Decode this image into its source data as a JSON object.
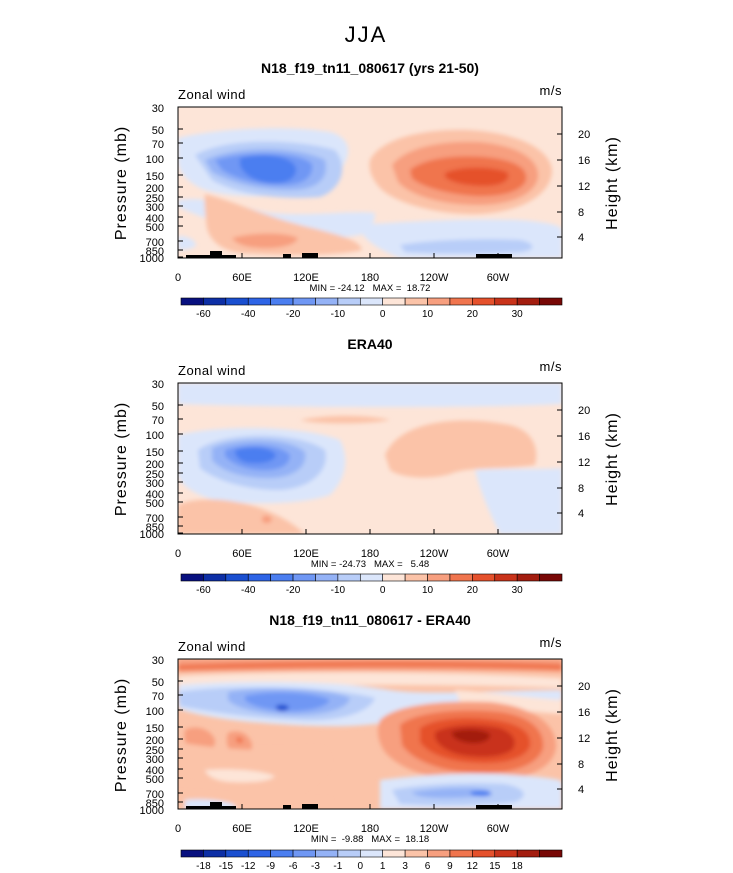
{
  "figure_title": "JJA",
  "chart_data": [
    {
      "type": "heatmap",
      "title": "N18_f19_tn11_080617 (yrs 21-50)",
      "left_label": "Zonal wind",
      "units": "m/s",
      "ylabel": "Pressure (mb)",
      "ylabel_right": "Height (km)",
      "x_ticks": [
        "0",
        "60E",
        "120E",
        "180",
        "120W",
        "60W"
      ],
      "y_ticks": [
        "30",
        "50",
        "70",
        "100",
        "150",
        "200",
        "250",
        "300",
        "400",
        "500",
        "700",
        "850",
        "1000"
      ],
      "height_ticks": [
        "20",
        "16",
        "12",
        "8",
        "4"
      ],
      "stats": "MIN = -24.12   MAX =  18.72",
      "min": -24.12,
      "max": 18.72,
      "colorbar_labels": [
        "-60",
        "-40",
        "-20",
        "-10",
        "0",
        "10",
        "20",
        "30"
      ],
      "colorbar_levels": [
        -70,
        -60,
        -50,
        -40,
        -30,
        -20,
        -15,
        -10,
        -5,
        0,
        5,
        10,
        15,
        20,
        25,
        30,
        35
      ],
      "colorbar_colors": [
        "#08107f",
        "#0d2fa6",
        "#1a4fd0",
        "#2e64e6",
        "#4b7ef0",
        "#6f97f4",
        "#94b2f6",
        "#b8cdf8",
        "#dbe6fb",
        "#fde5d8",
        "#fbc3a8",
        "#f79f7f",
        "#f0754e",
        "#e5512c",
        "#c9331a",
        "#a31d0f",
        "#780806"
      ]
    },
    {
      "type": "heatmap",
      "title": "ERA40",
      "left_label": "Zonal wind",
      "units": "m/s",
      "ylabel": "Pressure (mb)",
      "ylabel_right": "Height (km)",
      "x_ticks": [
        "0",
        "60E",
        "120E",
        "180",
        "120W",
        "60W"
      ],
      "y_ticks": [
        "30",
        "50",
        "70",
        "100",
        "150",
        "200",
        "250",
        "300",
        "400",
        "500",
        "700",
        "850",
        "1000"
      ],
      "height_ticks": [
        "20",
        "16",
        "12",
        "8",
        "4"
      ],
      "stats": "MIN = -24.73   MAX =   5.48",
      "min": -24.73,
      "max": 5.48,
      "colorbar_labels": [
        "-60",
        "-40",
        "-20",
        "-10",
        "0",
        "10",
        "20",
        "30"
      ],
      "colorbar_levels": [
        -70,
        -60,
        -50,
        -40,
        -30,
        -20,
        -15,
        -10,
        -5,
        0,
        5,
        10,
        15,
        20,
        25,
        30,
        35
      ],
      "colorbar_colors": [
        "#08107f",
        "#0d2fa6",
        "#1a4fd0",
        "#2e64e6",
        "#4b7ef0",
        "#6f97f4",
        "#94b2f6",
        "#b8cdf8",
        "#dbe6fb",
        "#fde5d8",
        "#fbc3a8",
        "#f79f7f",
        "#f0754e",
        "#e5512c",
        "#c9331a",
        "#a31d0f",
        "#780806"
      ]
    },
    {
      "type": "heatmap",
      "title": "N18_f19_tn11_080617 - ERA40",
      "left_label": "Zonal wind",
      "units": "m/s",
      "ylabel": "Pressure (mb)",
      "ylabel_right": "Height (km)",
      "x_ticks": [
        "0",
        "60E",
        "120E",
        "180",
        "120W",
        "60W"
      ],
      "y_ticks": [
        "30",
        "50",
        "70",
        "100",
        "150",
        "200",
        "250",
        "300",
        "400",
        "500",
        "700",
        "850",
        "1000"
      ],
      "height_ticks": [
        "20",
        "16",
        "12",
        "8",
        "4"
      ],
      "stats": "MIN =  -9.88   MAX =  18.18",
      "min": -9.88,
      "max": 18.18,
      "colorbar_labels": [
        "-18",
        "-15",
        "-12",
        "-9",
        "-6",
        "-3",
        "-1",
        "0",
        "1",
        "3",
        "6",
        "9",
        "12",
        "15",
        "18"
      ],
      "colorbar_colors": [
        "#08107f",
        "#0d2fa6",
        "#1a4fd0",
        "#2e64e6",
        "#4b7ef0",
        "#6f97f4",
        "#94b2f6",
        "#b8cdf8",
        "#dbe6fb",
        "#fde5d8",
        "#fbc3a8",
        "#f79f7f",
        "#f0754e",
        "#e5512c",
        "#c9331a",
        "#a31d0f",
        "#780806"
      ]
    }
  ]
}
